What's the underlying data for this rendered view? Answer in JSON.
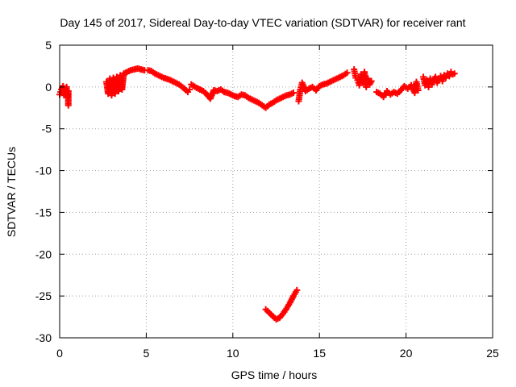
{
  "chart_data": {
    "type": "scatter",
    "title": "Day 145 of 2017, Sidereal Day-to-day VTEC variation (SDTVAR) for receiver rant",
    "xlabel": "GPS time / hours",
    "ylabel": "SDTVAR / TECUs",
    "xlim": [
      0,
      25
    ],
    "ylim": [
      -30,
      5
    ],
    "xticks": [
      0,
      5,
      10,
      15,
      20,
      25
    ],
    "yticks": [
      5,
      0,
      -5,
      -10,
      -15,
      -20,
      -25,
      -30
    ],
    "grid": true,
    "marker": "plus",
    "series": [
      {
        "name": "SDTVAR",
        "color": "#ff0000",
        "segments": [
          [
            [
              0.0,
              -0.9
            ],
            [
              0.1,
              -0.3
            ],
            [
              0.2,
              0.1
            ],
            [
              0.25,
              -1.0
            ],
            [
              0.3,
              -0.2
            ],
            [
              0.4,
              0.0
            ],
            [
              0.45,
              -1.2
            ],
            [
              0.5,
              -0.5
            ],
            [
              0.5,
              -2.2
            ]
          ],
          [
            [
              2.7,
              0.6
            ],
            [
              2.8,
              -0.8
            ],
            [
              2.9,
              1.0
            ],
            [
              3.0,
              -1.0
            ],
            [
              3.1,
              1.1
            ],
            [
              3.2,
              -0.8
            ],
            [
              3.3,
              1.2
            ],
            [
              3.4,
              -0.5
            ],
            [
              3.5,
              1.4
            ],
            [
              3.6,
              -0.3
            ],
            [
              3.7,
              1.6
            ],
            [
              3.9,
              1.8
            ],
            [
              4.1,
              2.0
            ],
            [
              4.3,
              2.1
            ],
            [
              4.5,
              2.2
            ],
            [
              4.7,
              2.1
            ],
            [
              4.9,
              2.0
            ],
            [
              5.1,
              2.0
            ],
            [
              5.3,
              1.9
            ],
            [
              5.5,
              1.6
            ],
            [
              5.8,
              1.3
            ],
            [
              6.0,
              1.1
            ],
            [
              6.3,
              0.9
            ],
            [
              6.6,
              0.6
            ],
            [
              6.9,
              0.3
            ],
            [
              7.2,
              -0.2
            ],
            [
              7.4,
              -0.6
            ],
            [
              7.5,
              -0.3
            ]
          ],
          [
            [
              7.6,
              0.3
            ],
            [
              7.9,
              -0.1
            ],
            [
              8.1,
              -0.3
            ],
            [
              8.3,
              -0.5
            ],
            [
              8.5,
              -0.9
            ],
            [
              8.7,
              -1.4
            ],
            [
              8.9,
              -0.4
            ],
            [
              9.1,
              -0.5
            ],
            [
              9.3,
              -0.3
            ],
            [
              9.5,
              -0.6
            ],
            [
              9.7,
              -0.7
            ],
            [
              9.9,
              -0.9
            ],
            [
              10.1,
              -1.1
            ],
            [
              10.3,
              -1.2
            ],
            [
              10.5,
              -0.9
            ],
            [
              10.7,
              -1.0
            ],
            [
              10.9,
              -1.3
            ],
            [
              11.1,
              -1.5
            ],
            [
              11.3,
              -1.7
            ],
            [
              11.5,
              -1.9
            ],
            [
              11.7,
              -2.2
            ],
            [
              11.9,
              -2.5
            ],
            [
              12.1,
              -2.1
            ],
            [
              12.3,
              -1.9
            ],
            [
              12.5,
              -1.6
            ],
            [
              12.7,
              -1.4
            ],
            [
              12.9,
              -1.2
            ],
            [
              13.1,
              -1.0
            ],
            [
              13.3,
              -0.9
            ],
            [
              13.5,
              -0.7
            ]
          ],
          [
            [
              11.9,
              -26.6
            ],
            [
              12.1,
              -27.0
            ],
            [
              12.3,
              -27.4
            ],
            [
              12.5,
              -27.8
            ],
            [
              12.7,
              -27.6
            ],
            [
              12.9,
              -27.1
            ],
            [
              13.1,
              -26.5
            ],
            [
              13.3,
              -25.8
            ],
            [
              13.5,
              -25.0
            ],
            [
              13.7,
              -24.3
            ]
          ],
          [
            [
              13.8,
              -1.7
            ],
            [
              13.9,
              -0.3
            ],
            [
              14.0,
              0.5
            ],
            [
              14.2,
              -0.5
            ],
            [
              14.4,
              -0.2
            ],
            [
              14.6,
              0.0
            ],
            [
              14.8,
              -0.4
            ],
            [
              15.0,
              0.1
            ],
            [
              15.2,
              0.3
            ],
            [
              15.4,
              0.4
            ],
            [
              15.6,
              0.6
            ],
            [
              15.8,
              0.8
            ],
            [
              16.0,
              1.0
            ],
            [
              16.2,
              1.2
            ],
            [
              16.4,
              1.4
            ],
            [
              16.6,
              1.7
            ]
          ],
          [
            [
              17.0,
              2.1
            ],
            [
              17.1,
              1.1
            ],
            [
              17.2,
              0.8
            ],
            [
              17.3,
              0.2
            ],
            [
              17.4,
              1.5
            ],
            [
              17.5,
              0.5
            ],
            [
              17.6,
              1.8
            ],
            [
              17.7,
              0.0
            ],
            [
              17.8,
              1.0
            ],
            [
              17.9,
              0.3
            ],
            [
              18.0,
              0.7
            ]
          ],
          [
            [
              18.3,
              -0.6
            ],
            [
              18.5,
              -0.8
            ],
            [
              18.7,
              -1.2
            ],
            [
              18.9,
              -0.5
            ],
            [
              19.1,
              -0.9
            ],
            [
              19.3,
              -0.6
            ],
            [
              19.5,
              -0.8
            ],
            [
              19.7,
              -0.4
            ],
            [
              19.9,
              0.1
            ],
            [
              20.1,
              -0.2
            ],
            [
              20.3,
              0.2
            ],
            [
              20.5,
              -0.7
            ],
            [
              20.6,
              0.6
            ],
            [
              20.7,
              -0.4
            ]
          ],
          [
            [
              21.0,
              1.2
            ],
            [
              21.1,
              0.2
            ],
            [
              21.2,
              0.8
            ],
            [
              21.3,
              0.0
            ],
            [
              21.4,
              1.0
            ],
            [
              21.5,
              0.3
            ],
            [
              21.6,
              0.8
            ],
            [
              21.7,
              1.2
            ],
            [
              21.8,
              0.5
            ],
            [
              21.9,
              1.0
            ],
            [
              22.0,
              1.3
            ],
            [
              22.1,
              0.7
            ],
            [
              22.2,
              1.4
            ],
            [
              22.3,
              1.1
            ],
            [
              22.4,
              1.6
            ],
            [
              22.5,
              1.3
            ],
            [
              22.6,
              1.8
            ],
            [
              22.7,
              1.5
            ],
            [
              22.8,
              1.6
            ]
          ]
        ]
      }
    ]
  }
}
